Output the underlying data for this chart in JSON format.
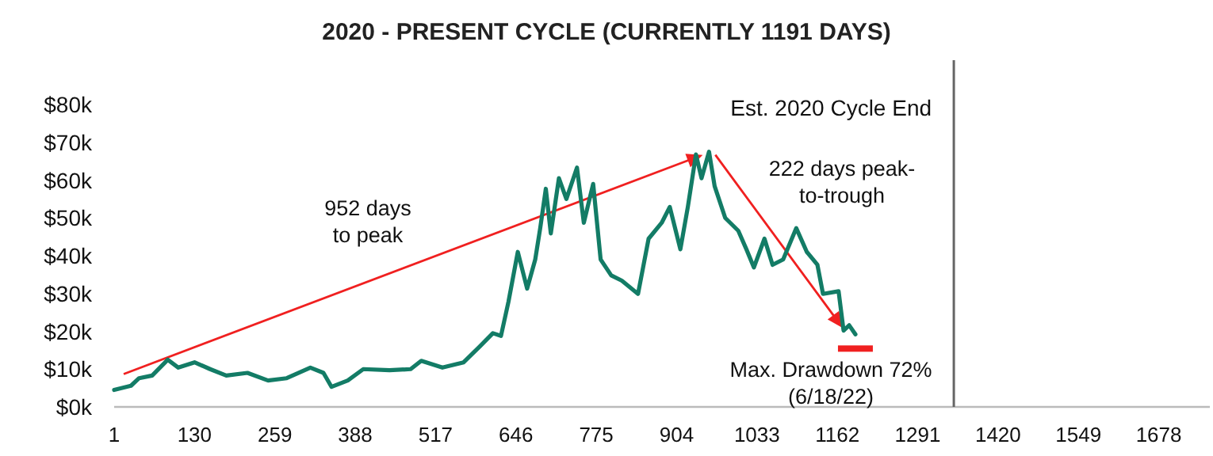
{
  "chart_data": {
    "type": "line",
    "title": "2020 - PRESENT CYCLE (CURRENTLY 1191 DAYS)",
    "x": [
      1,
      28,
      41,
      62,
      87,
      104,
      130,
      155,
      181,
      215,
      248,
      278,
      316,
      337,
      350,
      376,
      401,
      443,
      477,
      494,
      528,
      562,
      588,
      609,
      622,
      634,
      649,
      664,
      677,
      685,
      694,
      702,
      715,
      727,
      744,
      755,
      770,
      782,
      799,
      816,
      842,
      859,
      880,
      893,
      910,
      922,
      935,
      944,
      956,
      965,
      982,
      1003,
      1016,
      1028,
      1045,
      1058,
      1075,
      1096,
      1113,
      1130,
      1139,
      1164,
      1172,
      1181,
      1191
    ],
    "series": [
      {
        "color": "#137c66",
        "values": [
          4500,
          5600,
          7600,
          8300,
          12500,
          10400,
          11800,
          10000,
          8300,
          9000,
          7000,
          7600,
          10400,
          9000,
          5300,
          7000,
          10000,
          9700,
          10000,
          12200,
          10400,
          11800,
          16000,
          19500,
          18800,
          27800,
          41000,
          31300,
          39000,
          47300,
          57700,
          45900,
          60500,
          55000,
          63300,
          48700,
          59000,
          39000,
          34800,
          33400,
          29900,
          44500,
          48700,
          52900,
          41700,
          52900,
          66800,
          60500,
          67500,
          58400,
          50000,
          46600,
          41700,
          36900,
          44500,
          37600,
          39000,
          47300,
          41000,
          37600,
          29900,
          30600,
          20200,
          21600,
          19200
        ]
      }
    ],
    "xlim": [
      1,
      1760
    ],
    "xticks": [
      1,
      130,
      259,
      388,
      517,
      646,
      775,
      904,
      1033,
      1162,
      1291,
      1420,
      1549,
      1678
    ],
    "ylim": [
      0,
      80000
    ],
    "yticks": [
      {
        "value": 0,
        "label": "$0k"
      },
      {
        "value": 10000,
        "label": "$10k"
      },
      {
        "value": 20000,
        "label": "$20k"
      },
      {
        "value": 30000,
        "label": "$30k"
      },
      {
        "value": 40000,
        "label": "$40k"
      },
      {
        "value": 50000,
        "label": "$50k"
      },
      {
        "value": 60000,
        "label": "$60k"
      },
      {
        "value": 70000,
        "label": "$70k"
      },
      {
        "value": 80000,
        "label": "$80k"
      }
    ],
    "ref_lines": [
      {
        "axis": "x",
        "value": 1349,
        "label": "Est. 2020 Cycle End",
        "color": "#666666"
      }
    ],
    "annotations": [
      "952 days\nto peak",
      "222 days peak-\nto-trough",
      "Max. Drawdown 72%\n(6/18/22)"
    ],
    "grid": false,
    "marker": "none",
    "line_style": "solid"
  }
}
